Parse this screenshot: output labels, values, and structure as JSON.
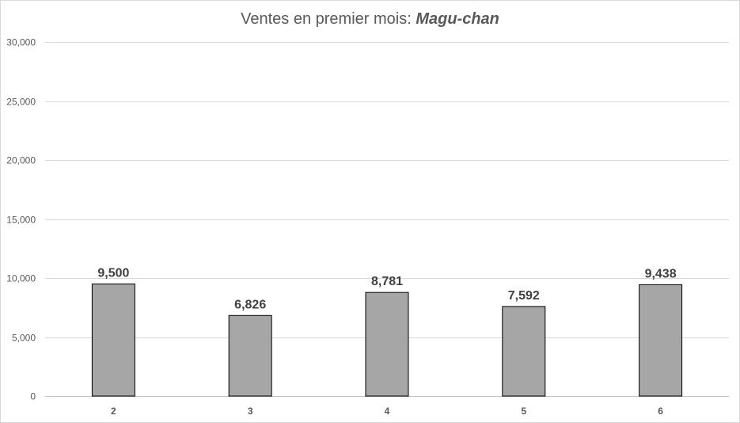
{
  "chart_data": {
    "type": "bar",
    "title_prefix": "Ventes en premier mois: ",
    "title_emphasis": "Magu-chan",
    "categories": [
      "2",
      "3",
      "4",
      "5",
      "6"
    ],
    "values": [
      9500,
      6826,
      8781,
      7592,
      9438
    ],
    "data_labels": [
      "9,500",
      "6,826",
      "8,781",
      "7,592",
      "9,438"
    ],
    "ylim": [
      0,
      30000
    ],
    "yticks": [
      0,
      5000,
      10000,
      15000,
      20000,
      25000,
      30000
    ],
    "ytick_labels": [
      "0",
      "5,000",
      "10,000",
      "15,000",
      "20,000",
      "25,000",
      "30,000"
    ],
    "xlabel": "",
    "ylabel": "",
    "grid": true,
    "legend": "none",
    "colors": {
      "bar_fill": "#a6a6a6",
      "bar_stroke": "#000000",
      "grid": "#d9d9d9"
    }
  }
}
